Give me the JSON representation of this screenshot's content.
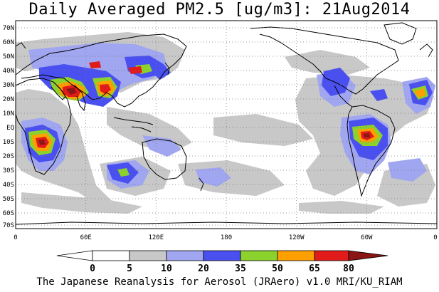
{
  "title": "Daily Averaged PM2.5 [ug/m3]: 21Aug2014",
  "footer": "The Japanese Reanalysis for Aerosol (JRAero) v1.0 MRI/KU_RIAM",
  "map": {
    "lat_labels": [
      "70N",
      "60N",
      "50N",
      "40N",
      "30N",
      "20N",
      "10N",
      "EQ",
      "10S",
      "20S",
      "30S",
      "40S",
      "50S",
      "60S",
      "70S"
    ],
    "lon_labels": [
      "0",
      "60E",
      "120E",
      "180",
      "120W",
      "60W",
      "0"
    ],
    "gridlines": true
  },
  "colorbar": {
    "levels": [
      "0",
      "5",
      "10",
      "20",
      "35",
      "50",
      "65",
      "80"
    ],
    "colors": [
      "#ffffff",
      "#c8c8c8",
      "#a0a6f0",
      "#4a50f0",
      "#8cd22d",
      "#ffa000",
      "#e11a1a",
      "#8b1414"
    ]
  }
}
